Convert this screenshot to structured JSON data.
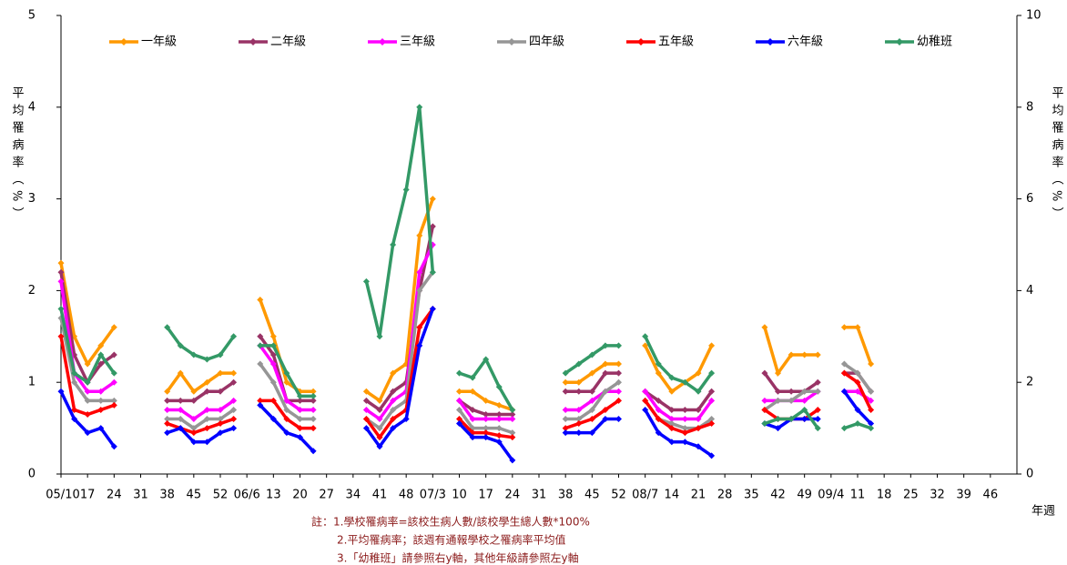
{
  "chart_data": {
    "type": "line",
    "y_label": "平均罹病率（%）",
    "y2_label": "平均罹病率（%）",
    "x_label": "年週",
    "notes": [
      "註：1.學校罹病率=該校生病人數/該校學生總人數*100%",
      "2.平均罹病率；該週有通報學校之罹病率平均值",
      "3.「幼稚班」請參照右y軸，其他年級請參照左y軸"
    ],
    "categories": [
      "05/10",
      null,
      "17",
      null,
      "24",
      null,
      "31",
      null,
      "38",
      null,
      "45",
      null,
      "52",
      null,
      "06/6",
      null,
      "13",
      null,
      "20",
      null,
      "27",
      null,
      "34",
      null,
      "41",
      null,
      "48",
      null,
      "07/3",
      null,
      "10",
      null,
      "17",
      null,
      "24",
      null,
      "31",
      null,
      "38",
      null,
      "45",
      null,
      "52",
      null,
      "08/7",
      null,
      "14",
      null,
      "21",
      null,
      "28",
      null,
      "35",
      null,
      "42",
      null,
      "49",
      null,
      "09/4",
      null,
      "11",
      null,
      "18",
      null,
      "25",
      null,
      "32",
      null,
      "39",
      null,
      "46",
      null
    ],
    "ylim": [
      0,
      5
    ],
    "yticks": [
      0,
      1,
      2,
      3,
      4,
      5
    ],
    "y2lim": [
      0,
      10
    ],
    "y2ticks": [
      0,
      2,
      4,
      6,
      8,
      10
    ],
    "legend": "top",
    "series": [
      {
        "name": "一年級",
        "color": "#ff9900",
        "values": [
          2.3,
          1.5,
          1.2,
          1.4,
          1.6,
          null,
          null,
          null,
          0.9,
          1.1,
          0.9,
          1.0,
          1.1,
          1.1,
          null,
          1.9,
          1.5,
          1.0,
          0.9,
          0.9,
          null,
          null,
          null,
          0.9,
          0.8,
          1.1,
          1.2,
          2.6,
          3.0,
          null,
          0.9,
          0.9,
          0.8,
          0.75,
          0.7,
          null,
          null,
          null,
          1.0,
          1.0,
          1.1,
          1.2,
          1.2,
          null,
          1.4,
          1.1,
          0.9,
          1.0,
          1.1,
          1.4,
          null,
          null,
          null,
          1.6,
          1.1,
          1.3,
          1.3,
          1.3,
          null,
          1.6,
          1.6,
          1.2,
          null,
          null,
          null,
          null,
          null,
          null,
          null,
          null,
          null,
          null
        ]
      },
      {
        "name": "二年級",
        "color": "#993366",
        "values": [
          2.2,
          1.3,
          1.0,
          1.2,
          1.3,
          null,
          null,
          null,
          0.8,
          0.8,
          0.8,
          0.9,
          0.9,
          1.0,
          null,
          1.5,
          1.3,
          0.8,
          0.8,
          0.8,
          null,
          null,
          null,
          0.8,
          0.7,
          0.9,
          1.0,
          2.0,
          2.7,
          null,
          0.8,
          0.7,
          0.65,
          0.65,
          0.65,
          null,
          null,
          null,
          0.9,
          0.9,
          0.9,
          1.1,
          1.1,
          null,
          0.9,
          0.8,
          0.7,
          0.7,
          0.7,
          0.9,
          null,
          null,
          null,
          1.1,
          0.9,
          0.9,
          0.9,
          1.0,
          null,
          1.1,
          1.1,
          0.9,
          null,
          null,
          null,
          null,
          null,
          null,
          null,
          null,
          null,
          null
        ]
      },
      {
        "name": "三年級",
        "color": "#ff00ff",
        "values": [
          2.1,
          1.1,
          0.9,
          0.9,
          1.0,
          null,
          null,
          null,
          0.7,
          0.7,
          0.6,
          0.7,
          0.7,
          0.8,
          null,
          1.4,
          1.2,
          0.8,
          0.7,
          0.7,
          null,
          null,
          null,
          0.7,
          0.6,
          0.8,
          0.9,
          2.2,
          2.5,
          null,
          0.8,
          0.6,
          0.6,
          0.6,
          0.6,
          null,
          null,
          null,
          0.7,
          0.7,
          0.8,
          0.9,
          0.9,
          null,
          0.9,
          0.7,
          0.6,
          0.6,
          0.6,
          0.8,
          null,
          null,
          null,
          0.8,
          0.8,
          0.8,
          0.8,
          0.9,
          null,
          0.9,
          0.9,
          0.8,
          null,
          null,
          null,
          null,
          null,
          null,
          null,
          null,
          null,
          null
        ]
      },
      {
        "name": "四年級",
        "color": "#969696",
        "values": [
          1.7,
          1.0,
          0.8,
          0.8,
          0.8,
          null,
          null,
          null,
          0.6,
          0.6,
          0.5,
          0.6,
          0.6,
          0.7,
          null,
          1.2,
          1.0,
          0.7,
          0.6,
          0.6,
          null,
          null,
          null,
          0.6,
          0.5,
          0.7,
          0.8,
          2.0,
          2.2,
          null,
          0.7,
          0.5,
          0.5,
          0.5,
          0.45,
          null,
          null,
          null,
          0.6,
          0.6,
          0.7,
          0.9,
          1.0,
          null,
          0.8,
          0.6,
          0.55,
          0.5,
          0.5,
          0.6,
          null,
          null,
          null,
          0.7,
          0.8,
          0.8,
          0.9,
          0.9,
          null,
          1.2,
          1.1,
          0.9,
          null,
          null,
          null,
          null,
          null,
          null,
          null,
          null,
          null,
          null
        ]
      },
      {
        "name": "五年級",
        "color": "#ff0000",
        "values": [
          1.5,
          0.7,
          0.65,
          0.7,
          0.75,
          null,
          null,
          null,
          0.55,
          0.5,
          0.45,
          0.5,
          0.55,
          0.6,
          null,
          0.8,
          0.8,
          0.6,
          0.5,
          0.5,
          null,
          null,
          null,
          0.6,
          0.4,
          0.6,
          0.7,
          1.6,
          1.8,
          null,
          0.6,
          0.45,
          0.45,
          0.42,
          0.4,
          null,
          null,
          null,
          0.5,
          0.55,
          0.6,
          0.7,
          0.8,
          null,
          0.8,
          0.6,
          0.5,
          0.45,
          0.5,
          0.55,
          null,
          null,
          null,
          0.7,
          0.6,
          0.6,
          0.6,
          0.7,
          null,
          1.1,
          1.0,
          0.7,
          null,
          null,
          null,
          null,
          null,
          null,
          null,
          null,
          null,
          null
        ]
      },
      {
        "name": "六年級",
        "color": "#0000ff",
        "values": [
          0.9,
          0.6,
          0.45,
          0.5,
          0.3,
          null,
          null,
          null,
          0.45,
          0.5,
          0.35,
          0.35,
          0.45,
          0.5,
          null,
          0.75,
          0.6,
          0.45,
          0.4,
          0.25,
          null,
          null,
          null,
          0.5,
          0.3,
          0.5,
          0.6,
          1.4,
          1.8,
          null,
          0.55,
          0.4,
          0.4,
          0.35,
          0.15,
          null,
          null,
          null,
          0.45,
          0.45,
          0.45,
          0.6,
          0.6,
          null,
          0.7,
          0.45,
          0.35,
          0.35,
          0.3,
          0.2,
          null,
          null,
          null,
          0.55,
          0.5,
          0.6,
          0.6,
          0.6,
          null,
          0.9,
          0.7,
          0.55,
          null,
          null,
          null,
          null,
          null,
          null,
          null,
          null,
          null,
          null
        ]
      },
      {
        "name": "幼稚班",
        "color": "#339966",
        "axis": "y2",
        "values": [
          3.6,
          2.2,
          2.0,
          2.6,
          2.2,
          null,
          null,
          null,
          3.2,
          2.8,
          2.6,
          2.5,
          2.6,
          3.0,
          null,
          2.8,
          2.8,
          2.2,
          1.7,
          1.7,
          null,
          null,
          null,
          4.2,
          3.0,
          5.0,
          6.2,
          8.0,
          4.4,
          null,
          2.2,
          2.1,
          2.5,
          1.9,
          1.4,
          null,
          null,
          null,
          2.2,
          2.4,
          2.6,
          2.8,
          2.8,
          null,
          3.0,
          2.4,
          2.1,
          2.0,
          1.8,
          2.2,
          null,
          null,
          null,
          1.1,
          1.2,
          1.2,
          1.4,
          1.0,
          null,
          1.0,
          1.1,
          1.0,
          null,
          null,
          null,
          null,
          null,
          null,
          null,
          null,
          null,
          null
        ]
      }
    ]
  }
}
